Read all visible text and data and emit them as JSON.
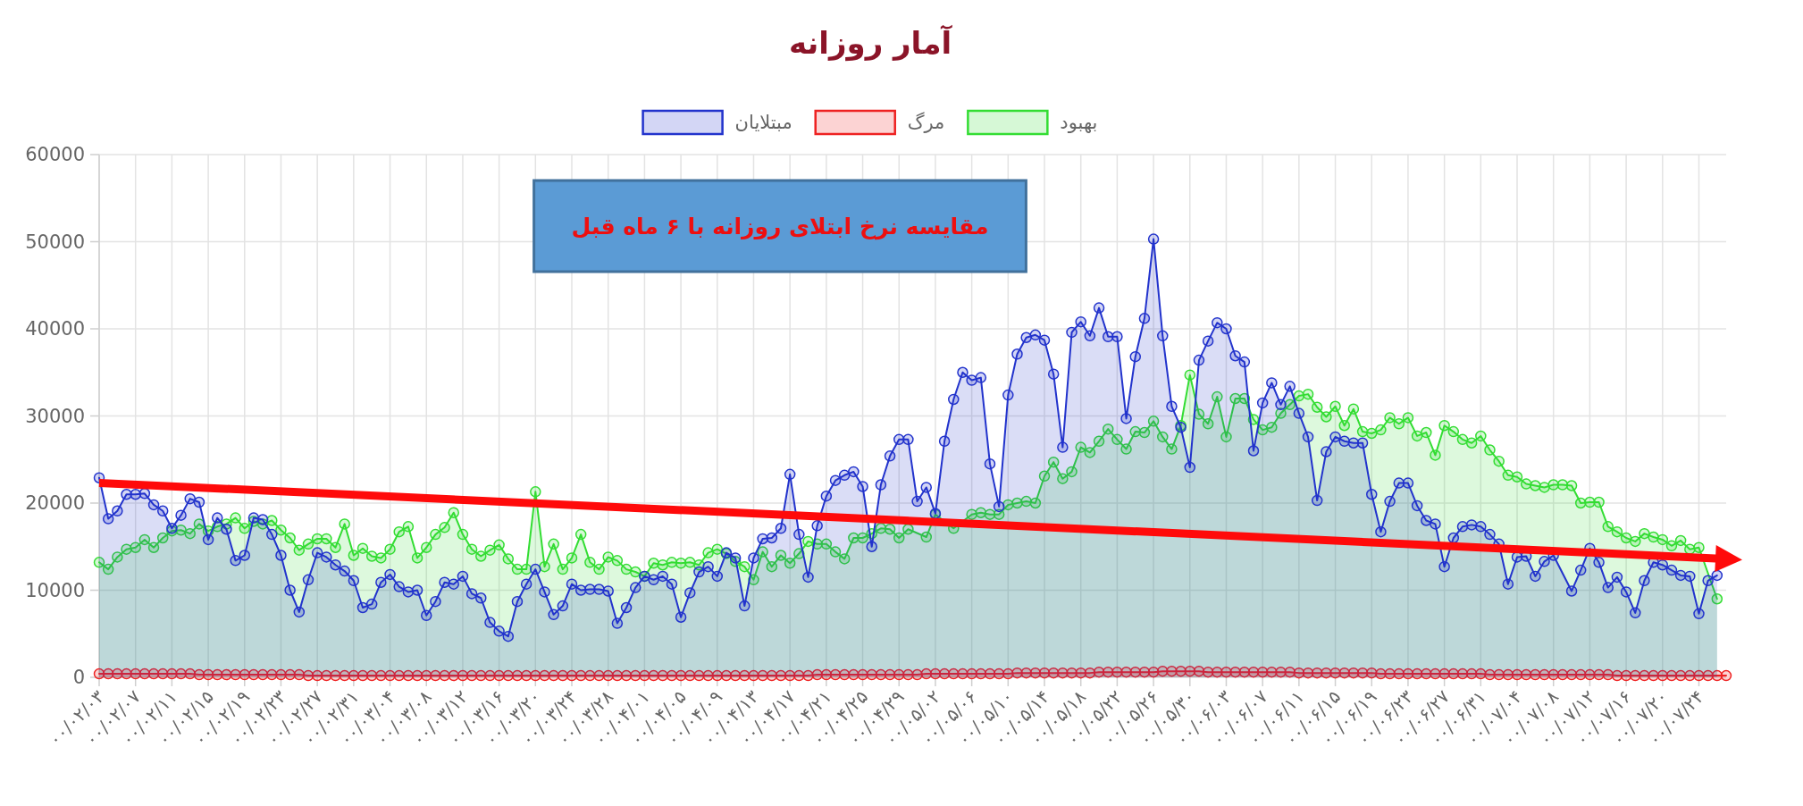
{
  "chart_data": {
    "type": "area",
    "title": "آمار روزانه",
    "categories": [
      "۰۰/۰۲/۰۳",
      null,
      null,
      null,
      "۰۰/۰۲/۰۷",
      null,
      null,
      null,
      "۰۰/۰۲/۱۱",
      null,
      null,
      null,
      "۰۰/۰۲/۱۵",
      null,
      null,
      null,
      "۰۰/۰۲/۱۹",
      null,
      null,
      null,
      "۰۰/۰۲/۲۳",
      null,
      null,
      null,
      "۰۰/۰۲/۲۷",
      null,
      null,
      null,
      "۰۰/۰۲/۳۱",
      null,
      null,
      null,
      "۰۰/۰۳/۰۴",
      null,
      null,
      null,
      "۰۰/۰۳/۰۸",
      null,
      null,
      null,
      "۰۰/۰۳/۱۲",
      null,
      null,
      null,
      "۰۰/۰۳/۱۶",
      null,
      null,
      null,
      "۰۰/۰۳/۲۰",
      null,
      null,
      null,
      "۰۰/۰۳/۲۴",
      null,
      null,
      null,
      "۰۰/۰۳/۲۸",
      null,
      null,
      null,
      "۰۰/۰۴/۰۱",
      null,
      null,
      null,
      "۰۰/۰۴/۰۵",
      null,
      null,
      null,
      "۰۰/۰۴/۰۹",
      null,
      null,
      null,
      "۰۰/۰۴/۱۳",
      null,
      null,
      null,
      "۰۰/۰۴/۱۷",
      null,
      null,
      null,
      "۰۰/۰۴/۲۱",
      null,
      null,
      null,
      "۰۰/۰۴/۲۵",
      null,
      null,
      null,
      "۰۰/۰۴/۲۹",
      null,
      null,
      null,
      "۰۰/۰۵/۰۲",
      null,
      null,
      null,
      "۰۰/۰۵/۰۶",
      null,
      null,
      null,
      "۰۰/۰۵/۱۰",
      null,
      null,
      null,
      "۰۰/۰۵/۱۴",
      null,
      null,
      null,
      "۰۰/۰۵/۱۸",
      null,
      null,
      null,
      "۰۰/۰۵/۲۲",
      null,
      null,
      null,
      "۰۰/۰۵/۲۶",
      null,
      null,
      null,
      "۰۰/۰۵/۳۰",
      null,
      null,
      null,
      "۰۰/۰۶/۰۳",
      null,
      null,
      null,
      "۰۰/۰۶/۰۷",
      null,
      null,
      null,
      "۰۰/۰۶/۱۱",
      null,
      null,
      null,
      "۰۰/۰۶/۱۵",
      null,
      null,
      null,
      "۰۰/۰۶/۱۹",
      null,
      null,
      null,
      "۰۰/۰۶/۲۳",
      null,
      null,
      null,
      "۰۰/۰۶/۲۷",
      null,
      null,
      null,
      "۰۰/۰۶/۳۱",
      null,
      null,
      null,
      "۰۰/۰۷/۰۴",
      null,
      null,
      null,
      "۰۰/۰۷/۰۸",
      null,
      null,
      null,
      "۰۰/۰۷/۱۲",
      null,
      null,
      null,
      "۰۰/۰۷/۱۶",
      null,
      null,
      null,
      "۰۰/۰۷/۲۰",
      null,
      null,
      null,
      "۰۰/۰۷/۲۴",
      null,
      null,
      null
    ],
    "series": [
      {
        "name": "مبتلایان",
        "color": "#2233cc",
        "values": [
          22900,
          18200,
          19100,
          21000,
          21000,
          21100,
          19800,
          19100,
          17100,
          18600,
          20500,
          20100,
          15800,
          18300,
          17000,
          13400,
          14000,
          18300,
          18100,
          16400,
          14000,
          10000,
          7500,
          11200,
          14300,
          13800,
          12900,
          12200,
          11100,
          8000,
          8400,
          10900,
          11800,
          10400,
          9800,
          10000,
          7100,
          8700,
          10900,
          10700,
          11600,
          9600,
          9100,
          6300,
          5300,
          4700,
          8700,
          10700,
          12400,
          9800,
          7200,
          8200,
          10700,
          10000,
          10100,
          10100,
          9900,
          6200,
          8000,
          10300,
          11600,
          11200,
          11600,
          10700,
          6900,
          9700,
          12100,
          12700,
          11600,
          14300,
          13700,
          8200,
          13700,
          15900,
          16000,
          17100,
          23300,
          16400,
          11500,
          17400,
          20800,
          22600,
          23200,
          23600,
          21900,
          15000,
          22100,
          25400,
          27300,
          27300,
          20200,
          21800,
          18800,
          27100,
          31900,
          35000,
          34100,
          34400,
          24500,
          19600,
          32400,
          37100,
          39000,
          39300,
          38700,
          34800,
          26400,
          39600,
          40800,
          39200,
          42400,
          39100,
          39100,
          29700,
          36800,
          41200,
          50300,
          39200,
          31100,
          28700,
          24100,
          36400,
          38600,
          40700,
          40000,
          36900,
          36200,
          26000,
          31500,
          33800,
          31300,
          33400,
          30300,
          27600,
          20300,
          25900,
          27600,
          27100,
          26900,
          26900,
          21000,
          16700,
          20200,
          22300,
          22300,
          19700,
          18000,
          17600,
          12700,
          16000,
          17300,
          17500,
          17300,
          16400,
          15300,
          10700,
          13800,
          13900,
          11600,
          13300,
          14000,
          null,
          9900,
          12300,
          14800,
          13200,
          10300,
          11500,
          9800,
          7400,
          11100,
          13200,
          12900,
          12300,
          11700,
          11600,
          7300,
          11100,
          11700,
          null
        ]
      },
      {
        "name": "مرگ",
        "color": "#ee2222",
        "values": [
          400,
          400,
          400,
          400,
          400,
          400,
          400,
          400,
          400,
          400,
          400,
          300,
          300,
          300,
          300,
          300,
          300,
          300,
          300,
          300,
          300,
          300,
          300,
          200,
          200,
          200,
          200,
          200,
          200,
          200,
          200,
          200,
          200,
          200,
          200,
          200,
          200,
          200,
          200,
          200,
          200,
          200,
          200,
          200,
          200,
          200,
          200,
          200,
          200,
          200,
          200,
          200,
          200,
          200,
          200,
          200,
          200,
          200,
          200,
          200,
          200,
          200,
          200,
          200,
          200,
          200,
          200,
          200,
          200,
          200,
          200,
          200,
          200,
          200,
          200,
          200,
          200,
          200,
          200,
          300,
          300,
          300,
          300,
          300,
          300,
          300,
          300,
          300,
          300,
          300,
          300,
          400,
          400,
          400,
          400,
          400,
          400,
          400,
          400,
          400,
          400,
          500,
          500,
          500,
          500,
          500,
          500,
          500,
          500,
          500,
          600,
          600,
          600,
          600,
          600,
          600,
          600,
          700,
          700,
          700,
          700,
          700,
          600,
          600,
          600,
          600,
          600,
          600,
          600,
          600,
          600,
          600,
          500,
          500,
          500,
          500,
          500,
          500,
          500,
          500,
          500,
          400,
          400,
          400,
          400,
          400,
          400,
          400,
          400,
          400,
          400,
          400,
          400,
          300,
          300,
          300,
          300,
          300,
          300,
          300,
          300,
          300,
          300,
          300,
          300,
          300,
          300,
          200,
          200,
          200,
          200,
          200,
          200,
          200,
          200,
          200,
          200,
          200,
          200,
          200
        ]
      },
      {
        "name": "بهبود",
        "color": "#33dd33",
        "values": [
          13200,
          12400,
          13800,
          14700,
          14900,
          15800,
          14900,
          16000,
          16800,
          16900,
          16500,
          17600,
          16800,
          17300,
          17600,
          18300,
          17100,
          17900,
          17600,
          18000,
          16900,
          16000,
          14600,
          15300,
          15900,
          15900,
          14900,
          17600,
          14000,
          14800,
          13900,
          13700,
          14700,
          16700,
          17300,
          13700,
          14900,
          16400,
          17200,
          18900,
          16400,
          14700,
          13900,
          14600,
          15200,
          13600,
          12400,
          12400,
          21300,
          12700,
          15300,
          12400,
          13700,
          16400,
          13200,
          12400,
          13800,
          13400,
          12400,
          12100,
          11600,
          13100,
          12900,
          13200,
          13100,
          13200,
          12900,
          14300,
          14700,
          14200,
          13300,
          12700,
          11200,
          14400,
          12700,
          14000,
          13100,
          14200,
          15600,
          15300,
          15300,
          14400,
          13600,
          16000,
          16000,
          16500,
          17100,
          17000,
          16000,
          17000,
          null,
          16100,
          18700,
          null,
          17100,
          null,
          18700,
          18900,
          18700,
          18700,
          19800,
          20000,
          20200,
          20000,
          23100,
          24700,
          22800,
          23600,
          26400,
          25800,
          27100,
          28500,
          27300,
          26200,
          28200,
          28100,
          29400,
          27600,
          26200,
          28900,
          34700,
          30200,
          29100,
          32200,
          27600,
          32000,
          32000,
          29600,
          28400,
          28700,
          30300,
          31300,
          32300,
          32500,
          31000,
          29900,
          31100,
          28900,
          30800,
          28200,
          28000,
          28400,
          29800,
          29100,
          29800,
          27700,
          28100,
          25500,
          28900,
          28200,
          27300,
          26900,
          27700,
          26100,
          24800,
          23200,
          23000,
          22200,
          22000,
          21800,
          22100,
          22100,
          22000,
          20000,
          20100,
          20100,
          17300,
          16700,
          16000,
          15600,
          16500,
          16100,
          15800,
          15100,
          15700,
          14700,
          14900,
          null,
          9000,
          null
        ]
      }
    ],
    "ylim": [
      0,
      60000
    ],
    "yticks": [
      0,
      10000,
      20000,
      30000,
      40000,
      50000,
      60000
    ],
    "grid": true,
    "legend": "top",
    "marker": "circle",
    "annotations": [
      "مقایسه نرخ ابتلای روزانه با ۶ ماه قبل"
    ]
  }
}
